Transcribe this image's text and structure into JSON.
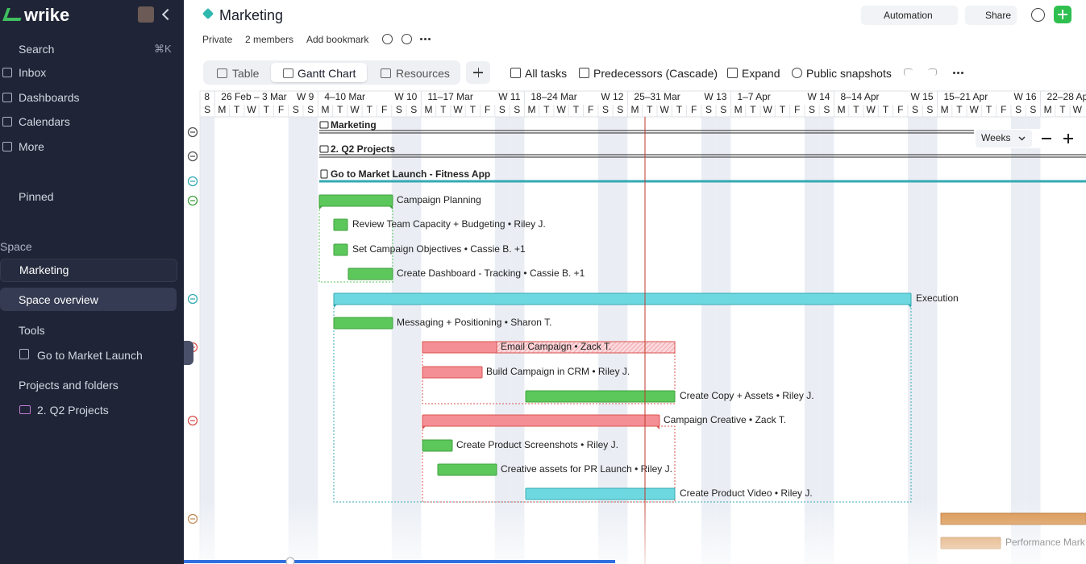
{
  "sidebar": {
    "logo": "wrike",
    "search": "Search",
    "shortcut": "⌘K",
    "nav": [
      "Inbox",
      "Dashboards",
      "Calendars",
      "More"
    ],
    "pinned": "Pinned",
    "space_heading": "Space",
    "space": "Marketing",
    "space_overview": "Space overview",
    "tools_heading": "Tools",
    "tools": [
      "Go to Market Launch"
    ],
    "projects_heading": "Projects and folders",
    "projects": [
      "2. Q2 Projects"
    ]
  },
  "header": {
    "title": "Marketing",
    "automation": "Automation",
    "share": "Share",
    "meta": [
      "Private",
      "2 members",
      "Add bookmark"
    ]
  },
  "tabs": [
    "Table",
    "Gantt Chart",
    "Resources"
  ],
  "toolbar": [
    "All tasks",
    "Predecessors (Cascade)",
    "Expand",
    "Public snapshots"
  ],
  "timeline": {
    "scale": "Weeks",
    "previous_week_tail": "8",
    "weeks": [
      {
        "range": "26 Feb – 3 Mar",
        "number": "W 9"
      },
      {
        "range": "4–10 Mar",
        "number": "W 10"
      },
      {
        "range": "11–17 Mar",
        "number": "W 11"
      },
      {
        "range": "18–24 Mar",
        "number": "W 12"
      },
      {
        "range": "25–31 Mar",
        "number": "W 13"
      },
      {
        "range": "1–7 Apr",
        "number": "W 14"
      },
      {
        "range": "8–14 Apr",
        "number": "W 15"
      },
      {
        "range": "15–21 Apr",
        "number": "W 16"
      },
      {
        "range": "22–28 Ap"
      }
    ],
    "days": [
      "S",
      "M",
      "T",
      "W",
      "T",
      "F",
      "S",
      "S",
      "M",
      "T",
      "W",
      "T",
      "F",
      "S",
      "S",
      "M",
      "T",
      "W",
      "T",
      "F",
      "S",
      "S",
      "M",
      "T",
      "W",
      "T",
      "F",
      "S",
      "S",
      "M",
      "T",
      "W",
      "T",
      "F",
      "S",
      "S",
      "M",
      "T",
      "W",
      "T",
      "F",
      "S",
      "S",
      "M",
      "T",
      "W",
      "T",
      "F",
      "S",
      "S",
      "M",
      "T",
      "W",
      "T",
      "F",
      "S",
      "S",
      "M",
      "T",
      "W"
    ]
  },
  "gantt": {
    "rows": [
      "Marketing",
      "2. Q2 Projects",
      "Go to Market Launch - Fitness App",
      "Campaign Planning",
      "Review Team Capacity + Budgeting • Riley J.",
      "Set Campaign Objectives • Cassie B. +1",
      "Create Dashboard - Tracking • Cassie B. +1",
      "Execution",
      "Messaging + Positioning • Sharon T.",
      "Email Campaign • Zack T.",
      "Build Campaign in CRM • Riley J.",
      "Create Copy + Assets • Riley J.",
      "Campaign Creative • Zack T.",
      "Create Product Screenshots • Riley J.",
      "Creative assets for PR Launch • Riley J.",
      "Create Product Video • Riley J.",
      "Performance Mark"
    ]
  }
}
